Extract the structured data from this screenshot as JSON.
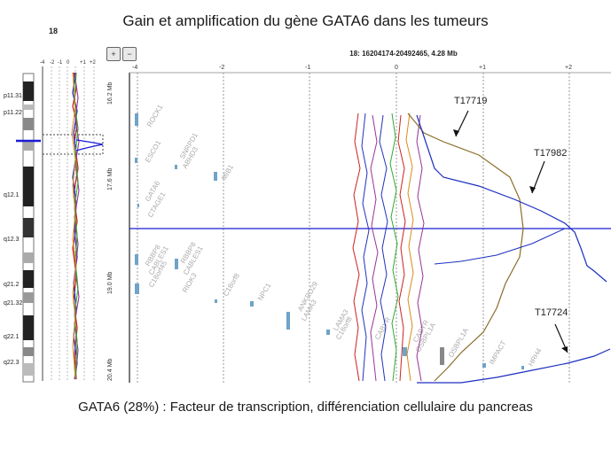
{
  "title": "Gain et amplification du gène GATA6 dans les tumeurs",
  "caption": "GATA6 (28%) : Facteur de transcription, différenciation cellulaire du pancreas",
  "chromosome": {
    "name": "18",
    "bands": [
      "p11.31",
      "p11.22",
      "q12.1",
      "q12.3",
      "q21.2",
      "q21.32",
      "q22.1",
      "q22.3"
    ],
    "overview_ticks": [
      "-4",
      "-2",
      "-1",
      "0",
      "+1",
      "+2"
    ]
  },
  "toolbar": {
    "zoom_in": "+",
    "zoom_out": "−"
  },
  "region_label": "18: 16204174-20492465, 4.28 Mb",
  "main_x_ticks": [
    "-4",
    "-2",
    "-1",
    "0",
    "+1",
    "+2"
  ],
  "y_axis_labels": [
    "16.2 Mb",
    "17.6 Mb",
    "19.0 Mb",
    "20.4 Mb"
  ],
  "genes": [
    "ROCK1",
    "ESCO1",
    "SNRPD1",
    "ABHD3",
    "MIB1",
    "GATA6",
    "CTAGE1",
    "RBBP8",
    "CABLES1",
    "C18orf45",
    "RBBP8",
    "CABLES1",
    "RIOK3",
    "C18orf8",
    "NPC1",
    "ANKRD29",
    "LAMA3",
    "LAMA3",
    "C18orf8",
    "CABYR",
    "CABYR",
    "OSBPL1A",
    "OSBPL1A",
    "IMPACT",
    "HRH4"
  ],
  "tumors": [
    "T17719",
    "T17982",
    "T17724"
  ],
  "colors": {
    "t17719": "#8a6d2a",
    "t17982": "#1c2fc0",
    "t17724": "#1c2fc0",
    "marker": "#1a1ad6",
    "gene_block": "#6fa3c8"
  }
}
